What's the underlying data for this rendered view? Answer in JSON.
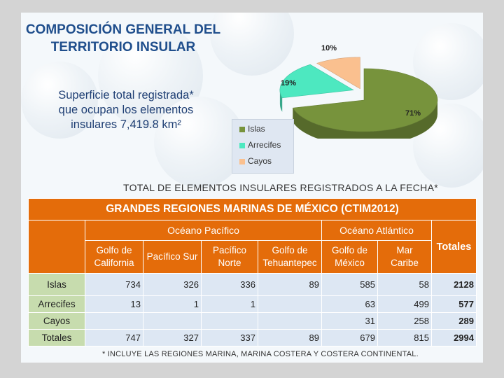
{
  "title": [
    "COMPOSICIÓN GENERAL DEL",
    "TERRITORIO INSULAR"
  ],
  "surface_text": [
    "Superficie total registrada*",
    "que ocupan los elementos",
    "insulares 7,419.8 km²"
  ],
  "chart_data": {
    "type": "pie",
    "categories": [
      "Islas",
      "Arrecifes",
      "Cayos"
    ],
    "values": [
      71,
      19,
      10
    ],
    "labels": [
      "71%",
      "19%",
      "10%"
    ],
    "colors": [
      "#77933c",
      "#4de8c0",
      "#fac08f"
    ],
    "legend_position": "bottom-left"
  },
  "count_title": "TOTAL DE ELEMENTOS INSULARES REGISTRADOS A LA FECHA*",
  "table": {
    "title": "GRANDES REGIONES MARINAS DE MÉXICO (CTIM2012)",
    "ocean_headers": [
      "Océano Pacífico",
      "Océano Atlántico"
    ],
    "region_headers": [
      [
        "Golfo de",
        "California"
      ],
      [
        "Pacífico Sur"
      ],
      [
        "Pacífico",
        "Norte"
      ],
      [
        "Golfo de",
        "Tehuantepec"
      ],
      [
        "Golfo de",
        "México"
      ],
      [
        "Mar",
        "Caribe"
      ]
    ],
    "totals_header": "Totales",
    "rows": [
      {
        "label": "Islas",
        "values": [
          "734",
          "326",
          "336",
          "89",
          "585",
          "58"
        ],
        "total": "2128"
      },
      {
        "label": "Arrecifes",
        "values": [
          "13",
          "1",
          "1",
          "",
          "63",
          "499"
        ],
        "total": "577"
      },
      {
        "label": "Cayos",
        "values": [
          "",
          "",
          "",
          "",
          "31",
          "258"
        ],
        "total": "289"
      },
      {
        "label": "Totales",
        "values": [
          "747",
          "327",
          "337",
          "89",
          "679",
          "815"
        ],
        "total": "2994"
      }
    ]
  },
  "footnote": "* INCLUYE LAS REGIONES MARINA, MARINA COSTERA Y COSTERA CONTINENTAL."
}
